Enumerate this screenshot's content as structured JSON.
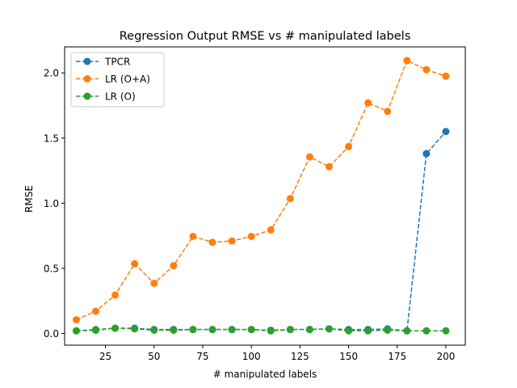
{
  "chart_data": {
    "type": "line",
    "title": "Regression Output RMSE vs # manipulated labels",
    "xlabel": "# manipulated labels",
    "ylabel": "RMSE",
    "xlim": [
      4,
      210
    ],
    "ylim": [
      -0.09,
      2.2
    ],
    "xticks": [
      25,
      50,
      75,
      100,
      125,
      150,
      175,
      200
    ],
    "yticks": [
      0.0,
      0.5,
      1.0,
      1.5,
      2.0
    ],
    "ytick_labels": [
      "0.0",
      "0.5",
      "1.0",
      "1.5",
      "2.0"
    ],
    "legend_position": "upper-left",
    "grid": false,
    "x": [
      10,
      20,
      30,
      40,
      50,
      60,
      70,
      80,
      90,
      100,
      110,
      120,
      130,
      140,
      150,
      160,
      170,
      180,
      190,
      200
    ],
    "series": [
      {
        "name": "TPCR",
        "color": "#1f77b4",
        "values": [
          0.02,
          0.025,
          0.04,
          0.04,
          0.03,
          0.03,
          0.03,
          0.03,
          0.03,
          0.03,
          0.025,
          0.03,
          0.03,
          0.035,
          0.03,
          0.03,
          0.035,
          0.02,
          1.38,
          1.55
        ]
      },
      {
        "name": "LR (O+A)",
        "color": "#ff7f0e",
        "values": [
          0.105,
          0.17,
          0.295,
          0.535,
          0.385,
          0.52,
          0.745,
          0.7,
          0.71,
          0.745,
          0.795,
          1.035,
          1.355,
          1.28,
          1.435,
          1.77,
          1.705,
          2.095,
          2.025,
          1.975
        ]
      },
      {
        "name": "LR (O)",
        "color": "#2ca02c",
        "values": [
          0.02,
          0.03,
          0.04,
          0.035,
          0.025,
          0.025,
          0.03,
          0.03,
          0.03,
          0.03,
          0.02,
          0.03,
          0.03,
          0.035,
          0.02,
          0.02,
          0.025,
          0.02,
          0.02,
          0.02
        ]
      }
    ]
  }
}
